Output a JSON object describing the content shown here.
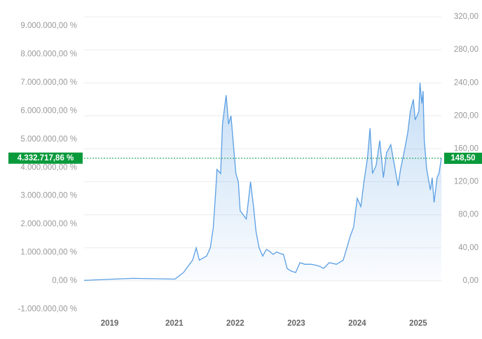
{
  "chart_data": {
    "type": "line",
    "x": [
      2019.52,
      2020.32,
      2021.01,
      2021.15,
      2021.3,
      2021.36,
      2021.41,
      2021.53,
      2021.59,
      2021.64,
      2021.68,
      2021.7,
      2021.76,
      2021.79,
      2021.85,
      2021.89,
      2021.93,
      2021.97,
      2022.01,
      2022.05,
      2022.08,
      2022.13,
      2022.18,
      2022.22,
      2022.25,
      2022.3,
      2022.34,
      2022.39,
      2022.45,
      2022.51,
      2022.56,
      2022.62,
      2022.68,
      2022.74,
      2022.79,
      2022.85,
      2022.91,
      2022.99,
      2023.06,
      2023.14,
      2023.25,
      2023.37,
      2023.45,
      2023.54,
      2023.66,
      2023.77,
      2023.83,
      2023.89,
      2023.94,
      2024.0,
      2024.06,
      2024.11,
      2024.17,
      2024.21,
      2024.25,
      2024.31,
      2024.37,
      2024.43,
      2024.48,
      2024.55,
      2024.61,
      2024.67,
      2024.71,
      2024.78,
      2024.83,
      2024.87,
      2024.92,
      2024.95,
      2025.01,
      2025.03,
      2025.06,
      2025.08,
      2025.1,
      2025.14,
      2025.2,
      2025.23,
      2025.26,
      2025.31,
      2025.34,
      2025.38
    ],
    "series": [
      {
        "color": "#5b9fe3",
        "axis": "y2",
        "values": [
          0.5,
          3,
          2,
          10,
          25,
          40,
          25,
          30,
          40,
          65,
          110,
          135,
          130,
          190,
          225,
          190,
          200,
          165,
          130,
          120,
          85,
          80,
          75,
          100,
          120,
          90,
          60,
          40,
          30,
          38,
          36,
          32,
          35,
          33,
          32,
          15,
          12,
          10,
          22,
          20,
          20,
          18,
          15,
          22,
          20,
          25,
          40,
          55,
          65,
          100,
          90,
          120,
          150,
          185,
          130,
          140,
          170,
          125,
          155,
          165,
          140,
          115,
          135,
          160,
          180,
          205,
          220,
          195,
          205,
          240,
          215,
          230,
          170,
          135,
          110,
          125,
          95,
          125,
          130,
          148.5
        ]
      }
    ],
    "xlim": [
      2019.52,
      2025.38
    ],
    "xticks": [
      {
        "value": 2019.94,
        "label": "2019"
      },
      2021,
      2022,
      2023,
      2024,
      2025
    ],
    "ylim": [
      -1162000,
      9322000
    ],
    "yticks": [
      {
        "value": -1000000,
        "label": "-1.000.000,00 %"
      },
      {
        "value": 0,
        "label": "0,00 %"
      },
      {
        "value": 1000000,
        "label": "1.000.000,00 %"
      },
      {
        "value": 2000000,
        "label": "2.000.000,00 %"
      },
      {
        "value": 3000000,
        "label": "3.000.000,00 %"
      },
      {
        "value": 4000000,
        "label": "4.000.000,00 %"
      },
      {
        "value": 5000000,
        "label": "5.000.000,00 %"
      },
      {
        "value": 6000000,
        "label": "6.000.000,00 %"
      },
      {
        "value": 7000000,
        "label": "7.000.000,00 %"
      },
      {
        "value": 8000000,
        "label": "8.000.000,00 %"
      },
      {
        "value": 9000000,
        "label": "9.000.000,00 %"
      }
    ],
    "y2lim": [
      -40,
      320
    ],
    "y2ticks": [
      {
        "value": 0,
        "label": "0,00"
      },
      {
        "value": 40,
        "label": "40,00"
      },
      {
        "value": 80,
        "label": "80,00"
      },
      {
        "value": 120,
        "label": "120,00"
      },
      {
        "value": 160,
        "label": "160,00"
      },
      {
        "value": 200,
        "label": "200,00"
      },
      {
        "value": 240,
        "label": "240,00"
      },
      {
        "value": 280,
        "label": "280,00"
      },
      {
        "value": 320,
        "label": "320,00"
      }
    ],
    "grid": true,
    "marker": {
      "color": "#0a9a3c",
      "y": {
        "value": 4332717.86,
        "label": "4.332.717,86 %"
      },
      "y2": {
        "value": 148.5,
        "label": "148,50"
      }
    }
  }
}
